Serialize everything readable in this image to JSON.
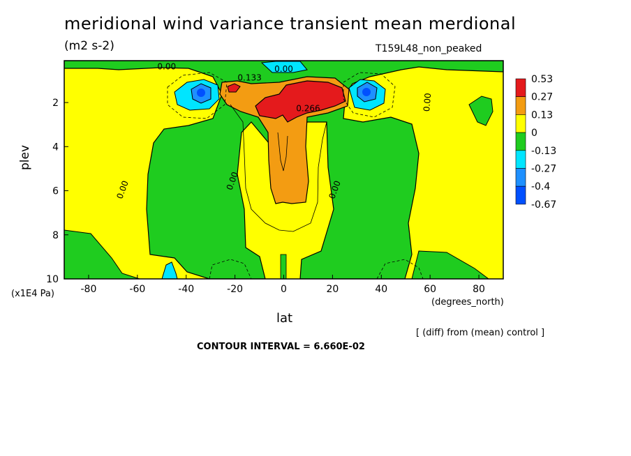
{
  "title": "meridional wind variance transient mean merdional",
  "units": "(m2 s-2)",
  "run_name": "T159L48_non_peaked",
  "footer": {
    "diff_note": "[ (diff) from (mean) control ]",
    "contour_interval": "CONTOUR INTERVAL = 6.660E-02"
  },
  "chart_data": {
    "type": "heatmap",
    "title": "meridional wind variance transient mean merdional",
    "subtitle": "(m2 s-2)",
    "xlabel": "lat",
    "x_units": "(degrees_north)",
    "ylabel": "plev",
    "y_units": "(x1E4 Pa)",
    "xlim": [
      -90,
      90
    ],
    "ylim": [
      10,
      0.1
    ],
    "x_ticks": [
      -80,
      -60,
      -40,
      -20,
      0,
      20,
      40,
      60,
      80
    ],
    "y_ticks": [
      2,
      4,
      6,
      8,
      10
    ],
    "colorbar": {
      "labels": [
        "0.53",
        "0.27",
        "0.13",
        "0",
        "-0.13",
        "-0.27",
        "-0.4",
        "-0.67"
      ],
      "colors": [
        "#e41a1c",
        "#f39c12",
        "#ffff00",
        "#1fcc1f",
        "#00e5ff",
        "#1e90ff",
        "#0050ff"
      ]
    },
    "contour_labels": [
      {
        "text": "0.00",
        "lat": -48,
        "plev": 0.5
      },
      {
        "text": "0.133",
        "lat": -14,
        "plev": 1.0
      },
      {
        "text": "0.00",
        "lat": 0,
        "plev": 0.6
      },
      {
        "text": "0.266",
        "lat": 10,
        "plev": 2.4
      },
      {
        "text": "0.00",
        "lat": 60,
        "plev": 2.0
      },
      {
        "text": "0.00",
        "lat": -65,
        "plev": 6.0
      },
      {
        "text": "0.00",
        "lat": -20,
        "plev": 5.6
      },
      {
        "text": "0.00",
        "lat": 22,
        "plev": 6.0
      }
    ]
  }
}
